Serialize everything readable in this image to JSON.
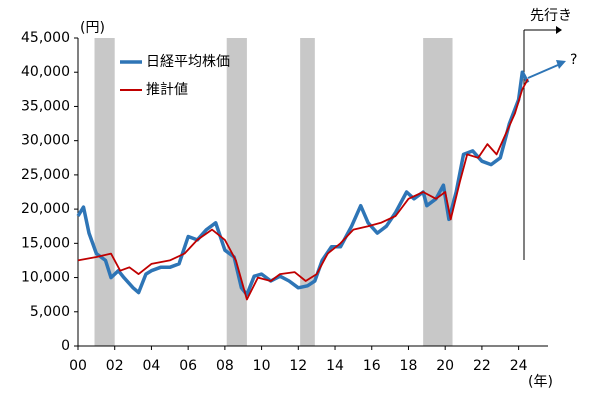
{
  "chart_data": {
    "type": "line",
    "annotations": {
      "y_unit": "(円)",
      "x_unit": "(年)",
      "outlook": "先行き",
      "question": "?"
    },
    "xlim": [
      2000,
      2025.6
    ],
    "ylim": [
      0,
      45000
    ],
    "xticks": [
      {
        "value": 2000,
        "label": "00"
      },
      {
        "value": 2002,
        "label": "02"
      },
      {
        "value": 2004,
        "label": "04"
      },
      {
        "value": 2006,
        "label": "06"
      },
      {
        "value": 2008,
        "label": "08"
      },
      {
        "value": 2010,
        "label": "10"
      },
      {
        "value": 2012,
        "label": "12"
      },
      {
        "value": 2014,
        "label": "14"
      },
      {
        "value": 2016,
        "label": "16"
      },
      {
        "value": 2018,
        "label": "18"
      },
      {
        "value": 2020,
        "label": "20"
      },
      {
        "value": 2022,
        "label": "22"
      },
      {
        "value": 2024,
        "label": "24"
      }
    ],
    "yticks": [
      0,
      {
        "value": 5000,
        "label": "5,000"
      },
      {
        "value": 10000,
        "label": "10,000"
      },
      {
        "value": 15000,
        "label": "15,000"
      },
      {
        "value": 20000,
        "label": "20,000"
      },
      {
        "value": 25000,
        "label": "25,000"
      },
      {
        "value": 30000,
        "label": "30,000"
      },
      {
        "value": 35000,
        "label": "35,000"
      },
      {
        "value": 40000,
        "label": "40,000"
      },
      {
        "value": 45000,
        "label": "45,000"
      }
    ],
    "legend": "upper left",
    "shaded_periods": [
      [
        2000.9,
        2002.0
      ],
      [
        2008.1,
        2009.2
      ],
      [
        2012.1,
        2012.9
      ],
      [
        2018.8,
        2020.4
      ]
    ],
    "shade_color": "#c8c8c8",
    "series": [
      {
        "name": "日経平均株価",
        "color": "#2e75b6",
        "x": [
          2000,
          2000.3,
          2000.6,
          2001,
          2001.5,
          2001.8,
          2002.2,
          2002.5,
          2003,
          2003.3,
          2003.7,
          2004,
          2004.5,
          2005,
          2005.5,
          2006,
          2006.5,
          2007,
          2007.5,
          2008,
          2008.5,
          2008.9,
          2009.2,
          2009.6,
          2010,
          2010.5,
          2011,
          2011.5,
          2012,
          2012.5,
          2012.9,
          2013.3,
          2013.8,
          2014.3,
          2014.9,
          2015.4,
          2015.8,
          2016.3,
          2016.8,
          2017.3,
          2017.9,
          2018.3,
          2018.8,
          2019,
          2019.5,
          2019.9,
          2020.2,
          2020.6,
          2021,
          2021.5,
          2022,
          2022.5,
          2023,
          2023.5,
          2024,
          2024.2,
          2024.5
        ],
        "values": [
          19000,
          20300,
          16500,
          13500,
          12500,
          10000,
          11000,
          10000,
          8500,
          7800,
          10500,
          11000,
          11500,
          11500,
          12000,
          16000,
          15500,
          17000,
          18000,
          14000,
          13000,
          8500,
          7500,
          10200,
          10500,
          9500,
          10200,
          9500,
          8500,
          8800,
          9500,
          12500,
          14500,
          14500,
          17500,
          20500,
          18000,
          16500,
          17500,
          19500,
          22500,
          21500,
          22500,
          20500,
          21500,
          23500,
          18500,
          22500,
          28000,
          28500,
          27000,
          26500,
          27500,
          32500,
          36000,
          40000,
          38500
        ]
      },
      {
        "name": "推計値",
        "color": "#c00000",
        "x": [
          2000,
          2001,
          2001.8,
          2002.3,
          2002.8,
          2003.3,
          2004,
          2005,
          2005.8,
          2006.5,
          2007.3,
          2008,
          2008.6,
          2009.2,
          2009.8,
          2010.5,
          2011,
          2011.8,
          2012.4,
          2013,
          2013.6,
          2014.3,
          2015,
          2015.8,
          2016.5,
          2017.3,
          2018,
          2018.8,
          2019.5,
          2020,
          2020.3,
          2020.8,
          2021.2,
          2021.8,
          2022.3,
          2022.8,
          2023.3,
          2023.8,
          2024.2,
          2024.5
        ],
        "values": [
          12500,
          13000,
          13500,
          11000,
          11500,
          10500,
          12000,
          12500,
          13500,
          15500,
          17000,
          15500,
          12500,
          6800,
          10000,
          9500,
          10500,
          10800,
          9500,
          10500,
          13500,
          15000,
          17000,
          17500,
          18000,
          19000,
          21500,
          22500,
          21500,
          22500,
          18500,
          24000,
          28000,
          27500,
          29500,
          28000,
          31000,
          34000,
          37500,
          39000
        ]
      }
    ]
  }
}
